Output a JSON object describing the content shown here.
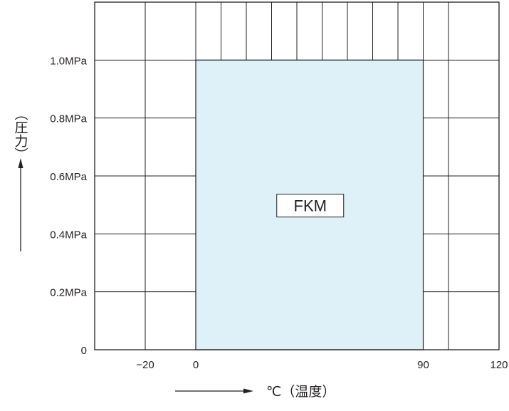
{
  "chart_data": {
    "type": "area",
    "title": "",
    "ylabel": "（圧力）",
    "xlabel": "℃（温度）",
    "xlim": [
      -40,
      120
    ],
    "ylim": [
      0,
      1.2
    ],
    "x_gridlines": [
      -20,
      0,
      10,
      20,
      30,
      40,
      50,
      60,
      70,
      80,
      90,
      100,
      120
    ],
    "y_gridlines": [
      0,
      0.2,
      0.4,
      0.6,
      0.8,
      1.0,
      1.2
    ],
    "x_ticks": [
      {
        "value": -20,
        "label": "−20"
      },
      {
        "value": 0,
        "label": "0"
      },
      {
        "value": 90,
        "label": "90"
      },
      {
        "value": 120,
        "label": "120"
      }
    ],
    "y_ticks": [
      {
        "value": 0,
        "label": "0"
      },
      {
        "value": 0.2,
        "label": "0.2MPa"
      },
      {
        "value": 0.4,
        "label": "0.4MPa"
      },
      {
        "value": 0.6,
        "label": "0.6MPa"
      },
      {
        "value": 0.8,
        "label": "0.8MPa"
      },
      {
        "value": 1.0,
        "label": "1.0MPa"
      }
    ],
    "regions": [
      {
        "label": "FKM",
        "x": [
          0,
          90
        ],
        "y": [
          0,
          1.0
        ],
        "fill": "#def1f9"
      }
    ],
    "grid": true,
    "legend": "none"
  },
  "colors": {
    "region_fill": "#def1f9",
    "line": "#231f20",
    "text": "#231f20"
  }
}
